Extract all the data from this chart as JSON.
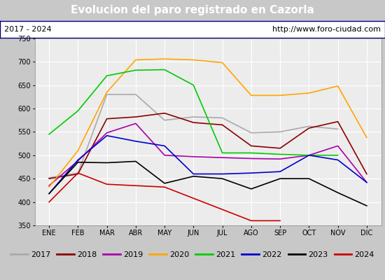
{
  "title": "Evolucion del paro registrado en Cazorla",
  "subtitle_left": "2017 - 2024",
  "subtitle_right": "http://www.foro-ciudad.com",
  "months": [
    "ENE",
    "FEB",
    "MAR",
    "ABR",
    "MAY",
    "JUN",
    "JUL",
    "AGO",
    "SEP",
    "OCT",
    "NOV",
    "DIC"
  ],
  "ylim": [
    350,
    750
  ],
  "yticks": [
    350,
    400,
    450,
    500,
    550,
    600,
    650,
    700,
    750
  ],
  "series": {
    "2017": {
      "color": "#aaaaaa",
      "data": [
        452,
        462,
        630,
        630,
        575,
        582,
        580,
        548,
        550,
        562,
        556,
        null
      ]
    },
    "2018": {
      "color": "#8b0000",
      "data": [
        450,
        460,
        578,
        582,
        590,
        570,
        565,
        520,
        515,
        558,
        572,
        460
      ]
    },
    "2019": {
      "color": "#aa00aa",
      "data": [
        435,
        488,
        548,
        568,
        500,
        497,
        495,
        493,
        492,
        500,
        520,
        442
      ]
    },
    "2020": {
      "color": "#ffa500",
      "data": [
        432,
        510,
        635,
        704,
        706,
        704,
        698,
        628,
        628,
        633,
        648,
        538
      ]
    },
    "2021": {
      "color": "#00cc00",
      "data": [
        545,
        595,
        670,
        682,
        683,
        650,
        505,
        505,
        502,
        500,
        500,
        null
      ]
    },
    "2022": {
      "color": "#0000cc",
      "data": [
        418,
        490,
        542,
        530,
        520,
        460,
        460,
        462,
        465,
        500,
        490,
        442
      ]
    },
    "2023": {
      "color": "#000000",
      "data": [
        418,
        485,
        484,
        487,
        440,
        455,
        450,
        428,
        450,
        450,
        420,
        392
      ]
    },
    "2024": {
      "color": "#cc0000",
      "data": [
        400,
        462,
        438,
        435,
        432,
        null,
        null,
        360,
        360,
        null,
        null,
        null
      ]
    }
  },
  "title_bg_color": "#4472c4",
  "title_text_color": "#ffffff",
  "subtitle_bg_color": "#ffffff",
  "chart_bg_color": "#ececec",
  "grid_color": "#ffffff",
  "legend_bg_color": "#ececec",
  "legend_border_color": "#000080",
  "fig_bg_color": "#c8c8c8"
}
